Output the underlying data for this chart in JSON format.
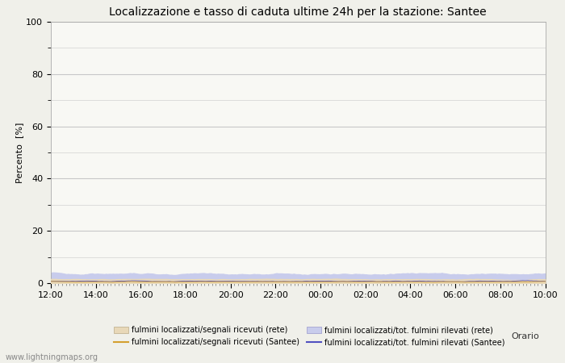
{
  "title": "Localizzazione e tasso di caduta ultime 24h per la stazione: Santee",
  "xlabel": "Orario",
  "ylabel": "Percento  [%]",
  "ylim": [
    0,
    100
  ],
  "yticks": [
    0,
    20,
    40,
    60,
    80,
    100
  ],
  "yticks_minor": [
    10,
    30,
    50,
    70,
    90
  ],
  "x_labels": [
    "12:00",
    "14:00",
    "16:00",
    "18:00",
    "20:00",
    "22:00",
    "00:00",
    "02:00",
    "04:00",
    "06:00",
    "08:00",
    "10:00"
  ],
  "n_points": 288,
  "fill_rete_color": "#e8d8b8",
  "fill_santee_color": "#c8ccec",
  "line_rete_color": "#d4a030",
  "line_santee_color": "#5050c0",
  "background_color": "#f0f0ea",
  "plot_bg_color": "#f8f8f4",
  "grid_color": "#c8c8c8",
  "title_fontsize": 10,
  "axis_fontsize": 8,
  "tick_fontsize": 8,
  "watermark": "www.lightningmaps.org",
  "legend_labels": [
    "fulmini localizzati/segnali ricevuti (rete)",
    "fulmini localizzati/segnali ricevuti (Santee)",
    "fulmini localizzati/tot. fulmini rilevati (rete)",
    "fulmini localizzati/tot. fulmini rilevati (Santee)"
  ]
}
